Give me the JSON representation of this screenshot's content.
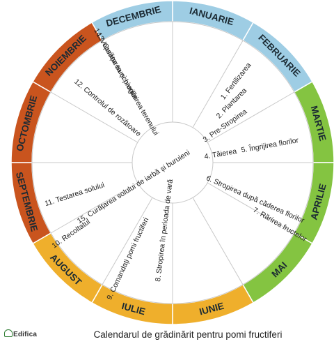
{
  "title": "Calendarul de grădinărit pentru pomi fructiferi",
  "logo_text": "Edifica",
  "colors": {
    "winter": "#9ecde4",
    "spring": "#84c441",
    "summer": "#efaf2c",
    "autumn": "#c9541e",
    "line": "#c8c8c8",
    "text": "#222222"
  },
  "months": [
    {
      "name": "IANUARIE",
      "season": "winter"
    },
    {
      "name": "FEBRUARIE",
      "season": "winter"
    },
    {
      "name": "MARTIE",
      "season": "spring"
    },
    {
      "name": "APRILIE",
      "season": "spring"
    },
    {
      "name": "MAI",
      "season": "spring"
    },
    {
      "name": "IUNIE",
      "season": "summer"
    },
    {
      "name": "IULIE",
      "season": "summer"
    },
    {
      "name": "AUGUST",
      "season": "summer"
    },
    {
      "name": "SEPTEMBRIE",
      "season": "autumn"
    },
    {
      "name": "OCTOMBRIE",
      "season": "autumn"
    },
    {
      "name": "NOIEMBRIE",
      "season": "autumn"
    },
    {
      "name": "DECEMBRIE",
      "season": "winter"
    }
  ],
  "tasks": [
    "1. Fertilizarea",
    "2. Plantarea",
    "3. Pre-Stropirea",
    "4. Tăierea",
    "5. Îngrijirea florilor",
    "6. Stropirea după căderea florilor",
    "7. Rărirea fructelor",
    "8. Stropirea în perioada de vară",
    "9. Comandați pomi fructiferi",
    "10. Recoltatul",
    "11. Testarea solului",
    "12. Controlul de rozătoare",
    "13. Curățarea și pregătirea terenului",
    "14. Vopsirea trunchiurilor",
    "15. Curățarea solului de iarbă și buruieni"
  ]
}
